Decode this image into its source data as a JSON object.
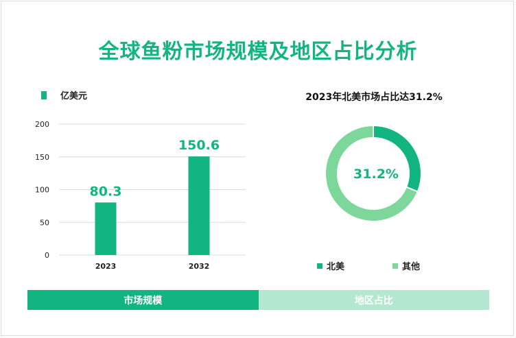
{
  "title": "全球鱼粉市场规模及地区占比分析",
  "colors": {
    "accent": "#12b57f",
    "light": "#7dd79a",
    "tab_inactive": "#b4e7cf"
  },
  "chart_data": [
    {
      "type": "bar",
      "legend": "亿美元",
      "categories": [
        "2023",
        "2032"
      ],
      "values": [
        80.3,
        150.6
      ],
      "value_labels": [
        "80.3",
        "150.6"
      ],
      "yticks": [
        "0",
        "50",
        "100",
        "150",
        "200"
      ],
      "ylim": [
        0,
        200
      ],
      "grid": true,
      "color": "#12b57f"
    },
    {
      "type": "pie",
      "title": "2023年北美市场占比达31.2%",
      "center_label": "31.2%",
      "slices": [
        {
          "name": "北美",
          "value": 31.2,
          "color": "#12b57f"
        },
        {
          "name": "其他",
          "value": 68.8,
          "color": "#7dd79a"
        }
      ]
    }
  ],
  "tabs": [
    {
      "label": "市场规模",
      "active": true
    },
    {
      "label": "地区占比",
      "active": false
    }
  ]
}
